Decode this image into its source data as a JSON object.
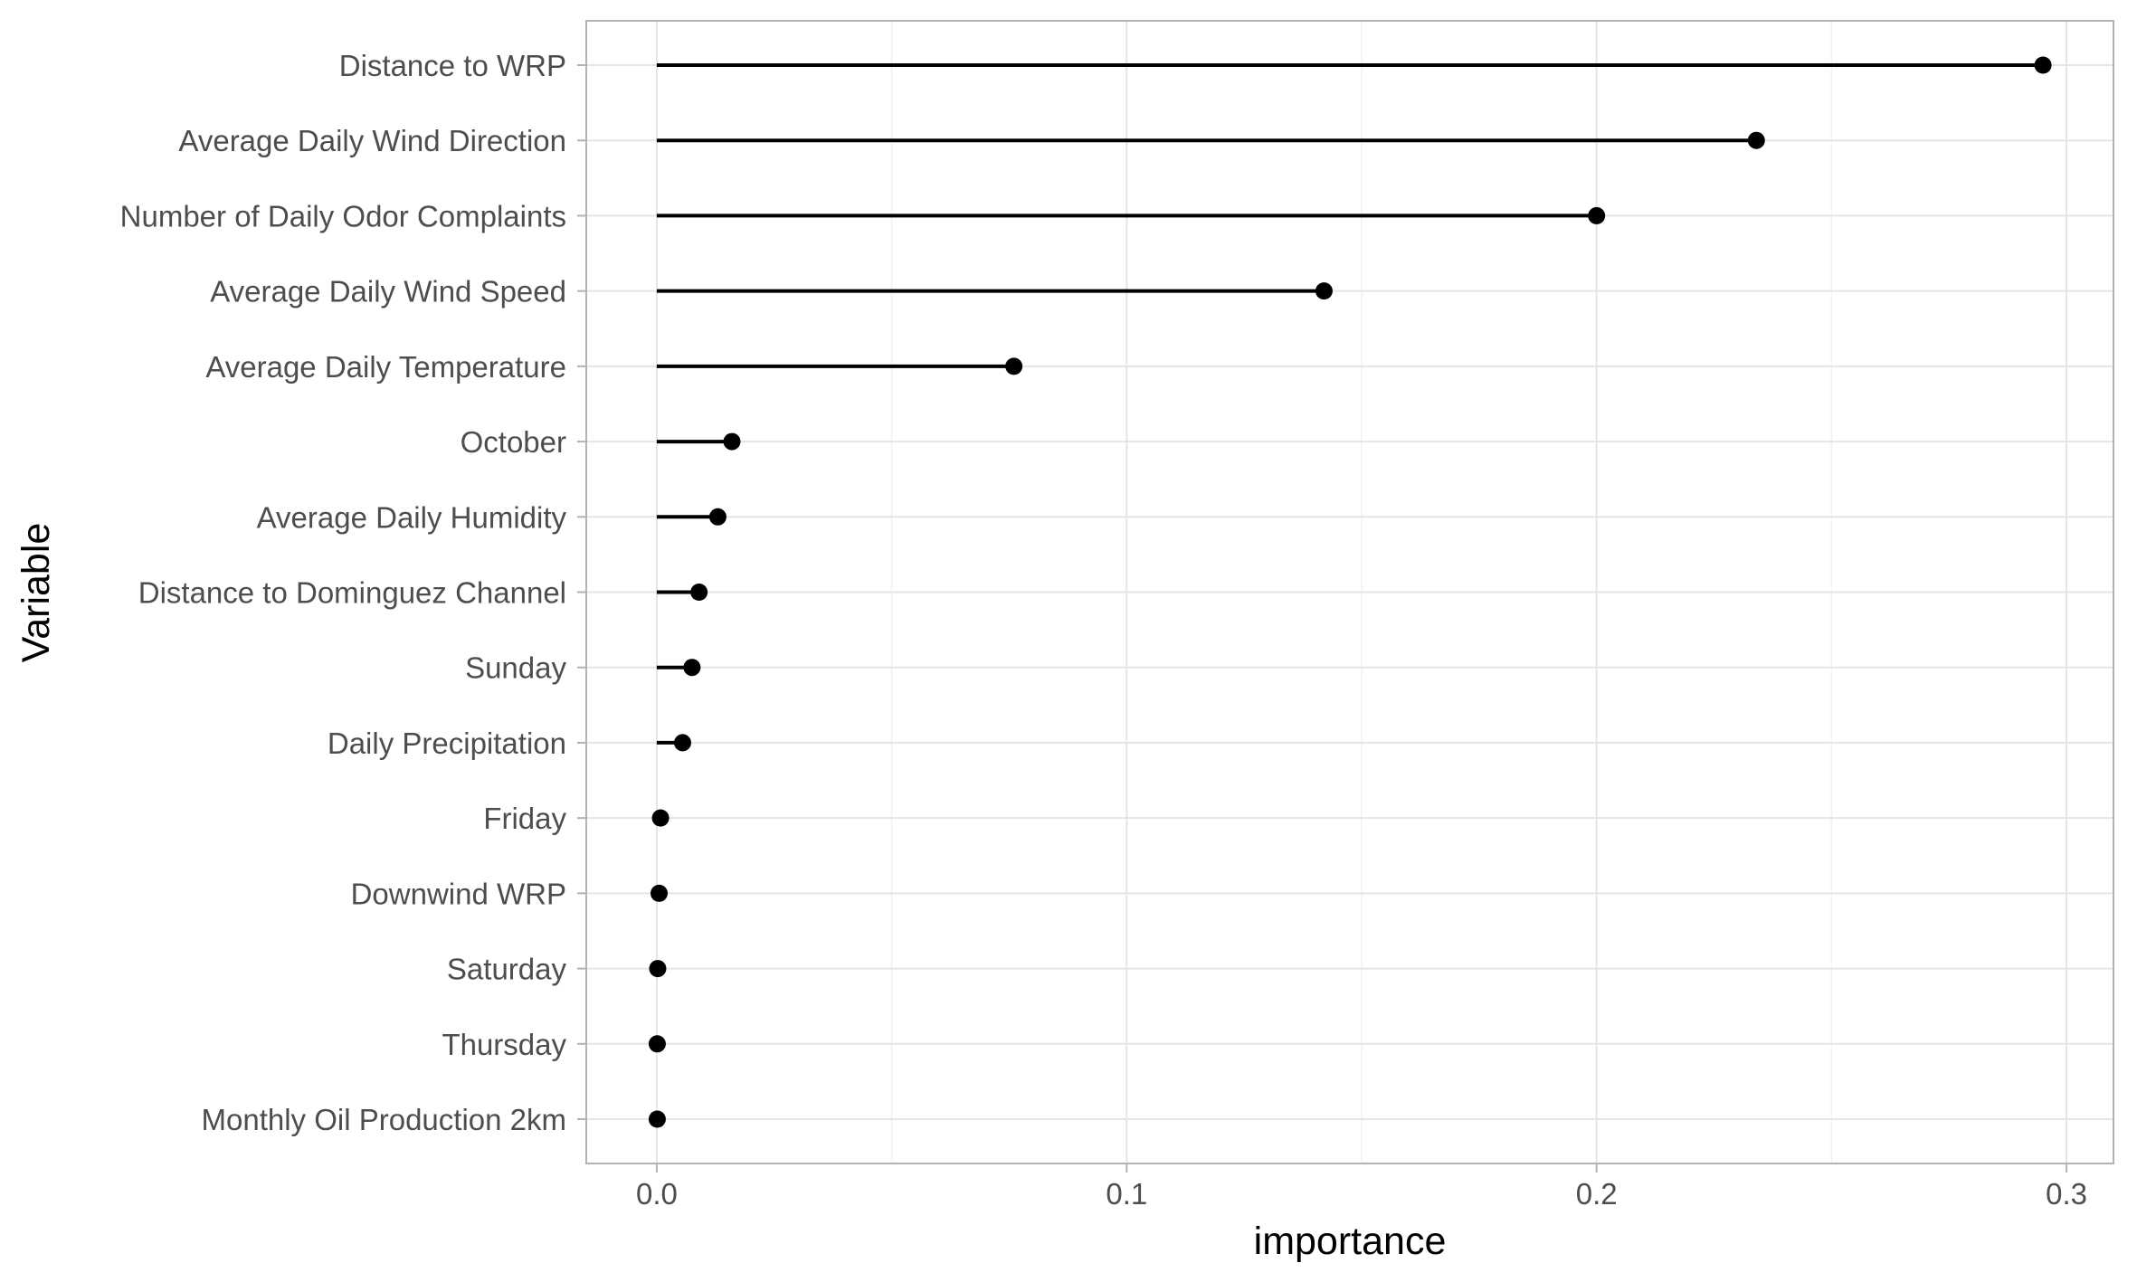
{
  "chart_data": {
    "type": "lollipop",
    "xlabel": "importance",
    "ylabel": "Variable",
    "xlim": [
      -0.015,
      0.31
    ],
    "x_ticks": [
      0.0,
      0.1,
      0.2,
      0.3
    ],
    "x_tick_labels": [
      "0.0",
      "0.1",
      "0.2",
      "0.3"
    ],
    "grid": true,
    "legend": "none",
    "stem_color": "#000000",
    "point_color": "#000000",
    "categories": [
      "Distance to WRP",
      "Average Daily Wind Direction",
      "Number of Daily Odor Complaints",
      "Average Daily Wind Speed",
      "Average Daily Temperature",
      "October",
      "Average Daily Humidity",
      "Distance to Dominguez Channel",
      "Sunday",
      "Daily Precipitation",
      "Friday",
      "Downwind WRP",
      "Saturday",
      "Thursday",
      "Monthly Oil Production 2km"
    ],
    "values": [
      0.295,
      0.234,
      0.2,
      0.142,
      0.076,
      0.016,
      0.013,
      0.009,
      0.0075,
      0.0055,
      0.0008,
      0.0005,
      0.0002,
      0.0001,
      0.0001
    ]
  }
}
